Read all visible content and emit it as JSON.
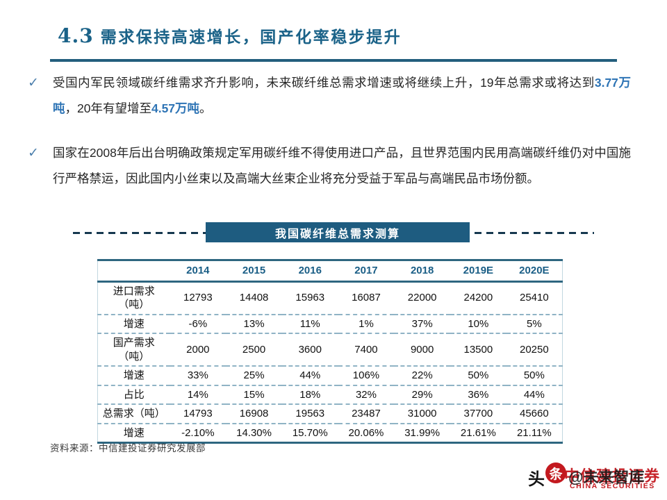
{
  "colors": {
    "title_color": "#1A6288",
    "rule_color": "#235E7D",
    "check_color": "#4C7FAC",
    "text_color": "#262626",
    "highlight_color": "#2E74B5",
    "banner_bg": "#1E5C80",
    "banner_text": "#FFFFFF",
    "dash_color": "#16384F",
    "table_line": "#2E6680",
    "table_dash": "#8FB3C5",
    "table_side": "#C2D7E0",
    "header_year": "#1A5E86",
    "source_color": "#3A3A3A",
    "red_logo": "#C3191F",
    "black_ink": "#141414"
  },
  "slide": {
    "section_number": "4.3",
    "title": "需求保持高速增长，国产化率稳步提升"
  },
  "check_glyph": "✓",
  "bullets": [
    {
      "parts": [
        {
          "text": "受国内军民领域碳纤维需求齐升影响，未来碳纤维总需求增速或将继续上升，19年总需求或将达到",
          "em": false
        },
        {
          "text": "3.77万吨",
          "em": true
        },
        {
          "text": "，20年有望增至",
          "em": false
        },
        {
          "text": "4.57万吨",
          "em": true
        },
        {
          "text": "。",
          "em": false
        }
      ]
    },
    {
      "parts": [
        {
          "text": "国家在2008年后出台明确政策规定军用碳纤维不得使用进口产品，且世界范围内民用高端碳纤维仍对中国施行严格禁运，因此国内小丝束以及高端大丝束企业将充分受益于军品与高端民品市场份额。",
          "em": false
        }
      ]
    }
  ],
  "banner_title": "我国碳纤维总需求测算",
  "table": {
    "columns": [
      "2014",
      "2015",
      "2016",
      "2017",
      "2018",
      "2019E",
      "2020E"
    ],
    "rows": [
      {
        "label": "进口需求\n（吨）",
        "values": [
          "12793",
          "14408",
          "15963",
          "16087",
          "22000",
          "24200",
          "25410"
        ]
      },
      {
        "label": "增速",
        "values": [
          "-6%",
          "13%",
          "11%",
          "1%",
          "37%",
          "10%",
          "5%"
        ]
      },
      {
        "label": "国产需求\n（吨）",
        "values": [
          "2000",
          "2500",
          "3600",
          "7400",
          "9000",
          "13500",
          "20250"
        ]
      },
      {
        "label": "增速",
        "values": [
          "33%",
          "25%",
          "44%",
          "106%",
          "22%",
          "50%",
          "50%"
        ]
      },
      {
        "label": "占比",
        "values": [
          "14%",
          "15%",
          "18%",
          "32%",
          "29%",
          "36%",
          "44%"
        ]
      },
      {
        "label": "总需求（吨）",
        "values": [
          "14793",
          "16908",
          "19563",
          "23487",
          "31000",
          "37700",
          "45660"
        ]
      },
      {
        "label": "增速",
        "values": [
          "-2.10%",
          "14.30%",
          "15.70%",
          "20.06%",
          "31.99%",
          "21.61%",
          "21.11%"
        ]
      }
    ]
  },
  "source": "资料来源：中信建投证券研究发展部",
  "watermark": {
    "toutiao_prefix": "头",
    "toutiao_seal": "条",
    "toutiao_handle": "@未来智库",
    "logo_cn": "中信建投证券",
    "logo_en": "CHINA SECURITIES"
  }
}
